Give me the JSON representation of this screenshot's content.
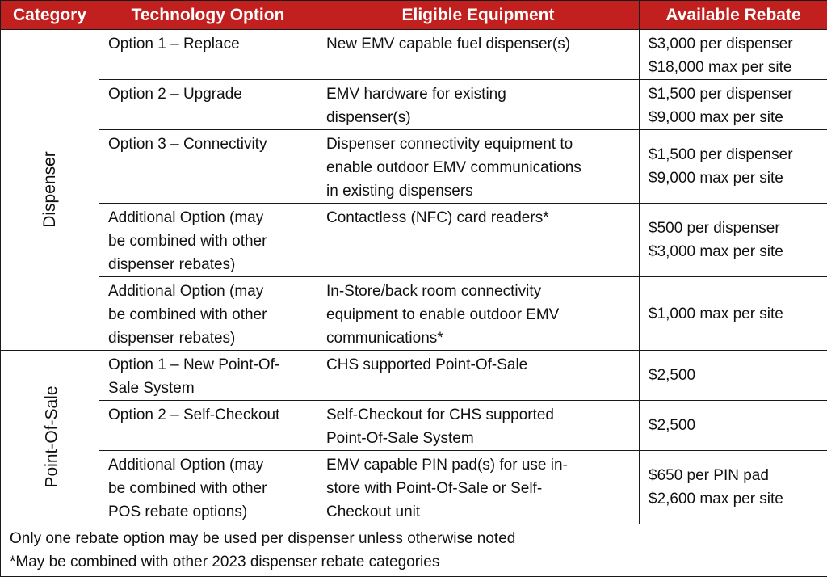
{
  "header": {
    "category": "Category",
    "technology": "Technology Option",
    "equipment": "Eligible Equipment",
    "rebate": "Available Rebate"
  },
  "categories": {
    "dispenser": "Dispenser",
    "pos": "Point-Of-Sale"
  },
  "rows": [
    {
      "option": [
        "Option 1 – Replace"
      ],
      "equipment": [
        "New EMV capable fuel dispenser(s)"
      ],
      "rebate": [
        "$3,000 per dispenser",
        "$18,000 max per site"
      ]
    },
    {
      "option": [
        "Option 2 – Upgrade"
      ],
      "equipment": [
        "EMV hardware for existing",
        "dispenser(s)"
      ],
      "rebate": [
        "$1,500 per dispenser",
        "$9,000 max per site"
      ]
    },
    {
      "option": [
        "Option 3 – Connectivity"
      ],
      "equipment": [
        "Dispenser connectivity equipment to",
        "enable outdoor EMV communications",
        "in existing dispensers"
      ],
      "rebate": [
        "$1,500 per dispenser",
        "$9,000 max per site"
      ]
    },
    {
      "option": [
        "Additional Option (may",
        "be combined with other",
        "dispenser rebates)"
      ],
      "equipment": [
        "Contactless (NFC) card readers*"
      ],
      "rebate": [
        "$500 per dispenser",
        "$3,000 max per site"
      ]
    },
    {
      "option": [
        "Additional Option (may",
        "be combined with other",
        "dispenser rebates)"
      ],
      "equipment": [
        "In-Store/back room connectivity",
        "equipment to enable outdoor EMV",
        "communications*"
      ],
      "rebate": [
        "$1,000 max per site"
      ]
    },
    {
      "option": [
        "Option 1 – New Point-Of-",
        "Sale System"
      ],
      "equipment": [
        "CHS supported Point-Of-Sale"
      ],
      "rebate": [
        "$2,500"
      ]
    },
    {
      "option": [
        "Option 2 – Self-Checkout"
      ],
      "equipment": [
        "Self-Checkout for CHS supported",
        "Point-Of-Sale System"
      ],
      "rebate": [
        "$2,500"
      ]
    },
    {
      "option": [
        "Additional Option (may",
        "be combined with other",
        "POS rebate options)"
      ],
      "equipment": [
        "EMV capable PIN pad(s) for use in-",
        "store with Point-Of-Sale or Self-",
        "Checkout unit"
      ],
      "rebate": [
        "$650 per PIN pad",
        "$2,600 max per site"
      ]
    }
  ],
  "footer": {
    "note1": "Only one rebate option may be used per dispenser unless otherwise noted",
    "note2": "*May be combined with other 2023 dispenser rebate categories"
  }
}
